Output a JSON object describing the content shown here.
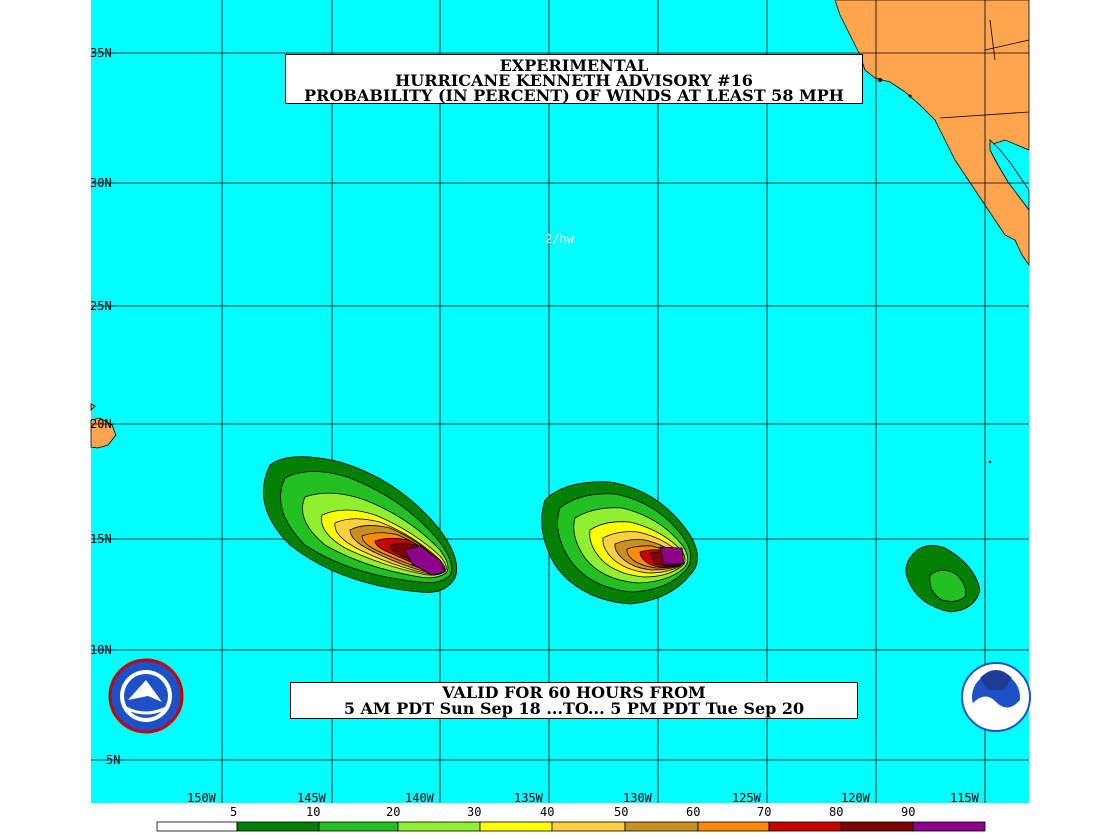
{
  "title": {
    "line1": "EXPERIMENTAL",
    "line2": "HURRICANE KENNETH ADVISORY #16",
    "line3": "PROBABILITY (IN PERCENT) OF WINDS AT LEAST 58 MPH"
  },
  "valid": {
    "line1": "VALID FOR 60 HOURS FROM",
    "line2": "5 AM PDT Sun Sep 18 ...TO... 5 PM PDT Tue Sep 20"
  },
  "credit": "2/hw",
  "lat_labels": [
    "35N",
    "30N",
    "25N",
    "20N",
    "15N",
    "10N",
    "5N"
  ],
  "lon_labels": [
    "150W",
    "145W",
    "140W",
    "135W",
    "130W",
    "125W",
    "120W",
    "115W"
  ],
  "legend": {
    "labels": [
      "5",
      "10",
      "20",
      "30",
      "40",
      "50",
      "60",
      "70",
      "80",
      "90"
    ],
    "colors": [
      "#ffffff",
      "#008000",
      "#22c022",
      "#90f030",
      "#ffff00",
      "#ffd040",
      "#c89020",
      "#ff8c00",
      "#c80000",
      "#800000",
      "#8c008c"
    ]
  },
  "colors": {
    "ocean": "#00ffff",
    "land": "#ffa54f",
    "grid": "#000000"
  },
  "icons": [
    "nws-logo-icon",
    "noaa-logo-icon"
  ]
}
